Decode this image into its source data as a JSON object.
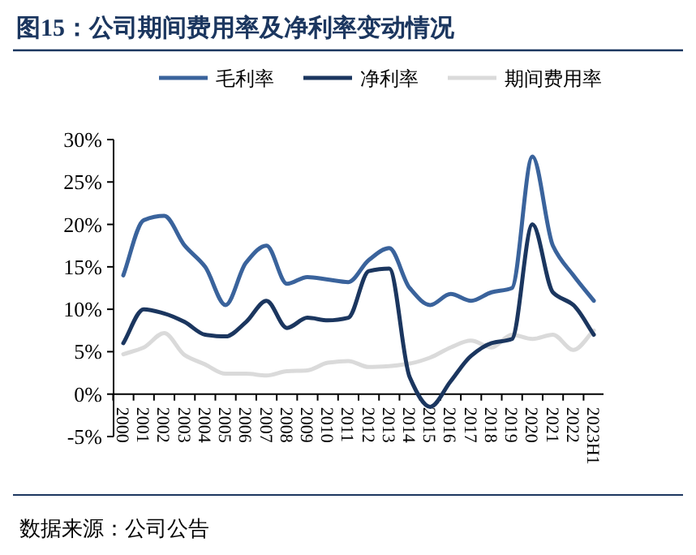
{
  "chart_data": {
    "type": "line",
    "title": "图15：公司期间费用率及净利率变动情况",
    "categories": [
      "2000",
      "2001",
      "2002",
      "2003",
      "2004",
      "2005",
      "2006",
      "2007",
      "2008",
      "2009",
      "2010",
      "2011",
      "2012",
      "2013",
      "2014",
      "2015",
      "2016",
      "2017",
      "2018",
      "2019",
      "2020",
      "2021",
      "2022",
      "2023H1"
    ],
    "series": [
      {
        "name": "毛利率",
        "color": "#3a639c",
        "values": [
          14,
          20.5,
          21,
          17.5,
          15,
          10.5,
          15.5,
          17.5,
          13,
          13.8,
          13.5,
          13.2,
          15.8,
          17.2,
          12.5,
          10.5,
          11.8,
          11,
          12,
          12.5,
          28,
          17.5,
          14,
          11
        ]
      },
      {
        "name": "净利率",
        "color": "#1b365f",
        "values": [
          6,
          10,
          9.5,
          8.5,
          7,
          6.8,
          8.5,
          11,
          7.8,
          9,
          8.7,
          9,
          14.5,
          14.8,
          2,
          -1.5,
          1.5,
          4.5,
          6,
          6.5,
          20,
          12,
          10.5,
          7
        ]
      },
      {
        "name": "期间费用率",
        "color": "#dadada",
        "values": [
          4.7,
          5.5,
          7.2,
          4.6,
          3.5,
          2.4,
          2.4,
          2.2,
          2.7,
          2.8,
          3.7,
          3.9,
          3.2,
          3.3,
          3.6,
          4.3,
          5.5,
          6.3,
          5.5,
          7,
          6.5,
          7,
          5.2,
          7.5
        ]
      }
    ],
    "ylim": [
      -5,
      30
    ],
    "yticks": [
      {
        "value": -5,
        "label": "-5%"
      },
      {
        "value": 0,
        "label": "0%"
      },
      {
        "value": 5,
        "label": "5%"
      },
      {
        "value": 10,
        "label": "10%"
      },
      {
        "value": 15,
        "label": "15%"
      },
      {
        "value": 20,
        "label": "20%"
      },
      {
        "value": 25,
        "label": "25%"
      },
      {
        "value": 30,
        "label": "30%"
      }
    ],
    "grid": false,
    "legend": "top",
    "marker": "none",
    "line_style": "solid",
    "annotations": [
      "数据来源：公司公告"
    ]
  }
}
